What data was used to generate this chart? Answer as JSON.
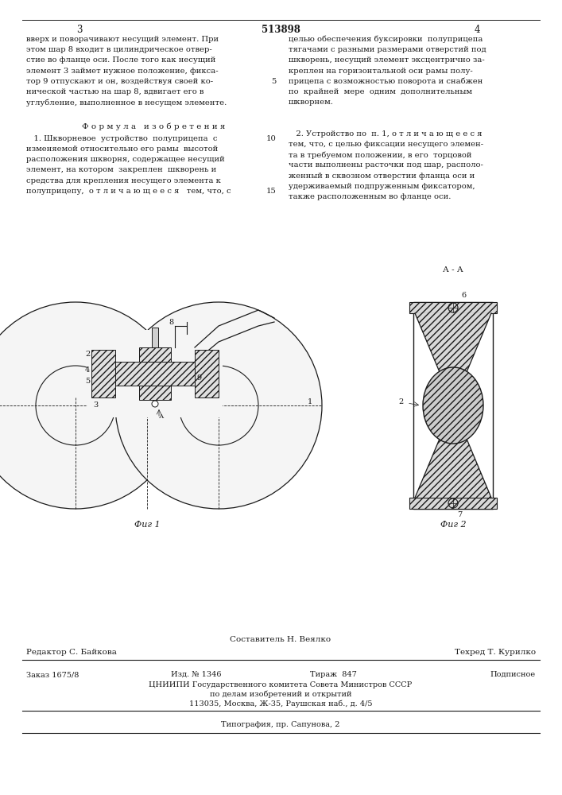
{
  "patent_number": "513898",
  "page_left": "3",
  "page_right": "4",
  "bg_color": "#ffffff",
  "text_color": "#1a1a1a",
  "left_col_top": [
    "вверх и поворачивают несущий элемент. При",
    "этом шар 8 входит в цилиндрическое отвер-",
    "стие во фланце оси. После того как несущий",
    "элемент 3 займет нужное положение, фикса-",
    "тор 9 отпускают и он, воздействуя своей ко-",
    "нической частью на шар 8, вдвигает его в",
    "углубление, выполненное в несущем элементе."
  ],
  "line_numbers_left": [
    "",
    "",
    "",
    "",
    "5",
    "",
    ""
  ],
  "formula_title": "Ф о р м у л а   и з о б р е т е н и я",
  "formula_text_left": [
    "   1. Шкворневое  устройство  полуприцепа  с",
    "изменяемой относительно его рамы  высотой",
    "расположения шкворня, содержащее несущий",
    "элемент, на котором  закреплен  шкворень и",
    "средства для крепления несущего элемента к",
    "полуприцепу,  о т л и ч а ю щ е е с я   тем, что, с"
  ],
  "line_numbers_formula": [
    "10",
    "",
    "",
    "",
    "",
    "15"
  ],
  "right_col_top": [
    "целью обеспечения буксировки  полуприцепа",
    "тягачами с разными размерами отверстий под",
    "шкворень, несущий элемент эксцентрично за-",
    "креплен на горизонтальной оси рамы полу-",
    "прицепа с возможностью поворота и снабжен",
    "по  крайней  мере  одним  дополнительным",
    "шкворнем."
  ],
  "claim2_header": "   2. Устройство по  п. 1, о т л и ч а ю щ е е с я",
  "claim2_text": [
    "тем, что, с целью фиксации несущего элемен-",
    "та в требуемом положении, в его  торцовой",
    "части выполнены расточки под шар, располо-",
    "женный в сквозном отверстии фланца оси и",
    "удерживаемый подпруженным фиксатором,",
    "также расположенным во фланце оси."
  ],
  "fig1_label": "Фиг 1",
  "fig2_label": "Фиг 2",
  "fig2_section_label": "А - А",
  "composer": "Составитель Н. Веялко",
  "editor": "Редактор С. Байкова",
  "techred": "Техред Т. Курилко",
  "order": "Заказ 1675/8",
  "izdanie": "Изд. № 1346",
  "tirazh": "Тираж  847",
  "podpisnoe": "Подписное",
  "org_line1": "ЦНИИПИ Государственного комитета Совета Министров СССР",
  "org_line2": "по делам изобретений и открытий",
  "org_line3": "113035, Москва, Ж-35, Раушская наб., д. 4/5",
  "typography": "Типография, пр. Сапунова, 2"
}
